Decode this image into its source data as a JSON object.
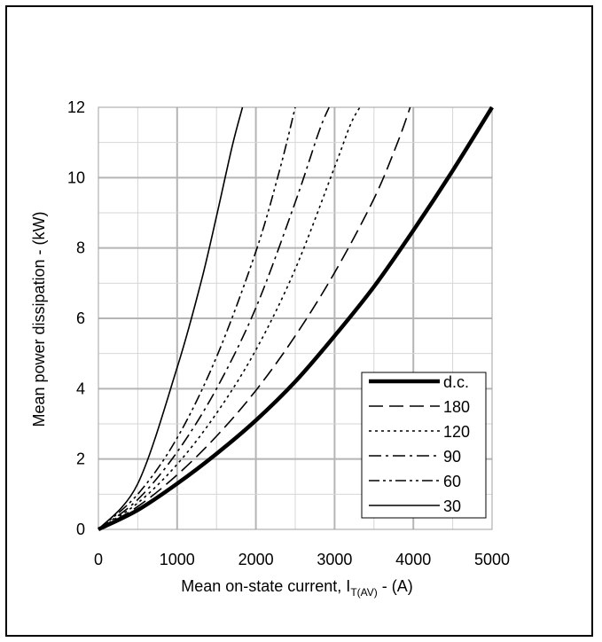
{
  "chart_data": {
    "type": "line",
    "title": "",
    "xlabel_main": "Mean on-state current, I",
    "xlabel_sub": "T(AV)",
    "xlabel_unit": " - (A)",
    "ylabel": "Mean power dissipation - (kW)",
    "xlim": [
      0,
      5000
    ],
    "ylim": [
      0,
      12
    ],
    "x_ticks": [
      "0",
      "1000",
      "2000",
      "3000",
      "4000",
      "5000"
    ],
    "y_ticks": [
      "0",
      "2",
      "4",
      "6",
      "8",
      "10",
      "12"
    ],
    "grid": true,
    "legend_position": "bottom-right",
    "series": [
      {
        "name": "d.c.",
        "style": "thick-solid",
        "points": [
          [
            0,
            0
          ],
          [
            500,
            0.55
          ],
          [
            1000,
            1.3
          ],
          [
            1500,
            2.15
          ],
          [
            2000,
            3.1
          ],
          [
            2500,
            4.2
          ],
          [
            3000,
            5.5
          ],
          [
            3500,
            6.9
          ],
          [
            4000,
            8.5
          ],
          [
            4500,
            10.2
          ],
          [
            5000,
            12
          ]
        ]
      },
      {
        "name": "180",
        "style": "long-dash",
        "points": [
          [
            0,
            0
          ],
          [
            500,
            0.65
          ],
          [
            1000,
            1.55
          ],
          [
            1500,
            2.65
          ],
          [
            2000,
            3.95
          ],
          [
            2500,
            5.5
          ],
          [
            3000,
            7.3
          ],
          [
            3500,
            9.4
          ],
          [
            3800,
            11
          ],
          [
            3960,
            12
          ]
        ]
      },
      {
        "name": "120",
        "style": "dotted",
        "points": [
          [
            0,
            0
          ],
          [
            500,
            0.75
          ],
          [
            1000,
            1.85
          ],
          [
            1500,
            3.3
          ],
          [
            2000,
            5.1
          ],
          [
            2500,
            7.4
          ],
          [
            3000,
            10.3
          ],
          [
            3200,
            11.5
          ],
          [
            3320,
            12
          ]
        ]
      },
      {
        "name": "90",
        "style": "dash-dot",
        "points": [
          [
            0,
            0
          ],
          [
            500,
            0.85
          ],
          [
            1000,
            2.2
          ],
          [
            1500,
            4.0
          ],
          [
            2000,
            6.3
          ],
          [
            2500,
            9.3
          ],
          [
            2800,
            11.3
          ],
          [
            2930,
            12
          ]
        ]
      },
      {
        "name": "60",
        "style": "dash-dot-dot",
        "points": [
          [
            0,
            0
          ],
          [
            500,
            1.0
          ],
          [
            1000,
            2.6
          ],
          [
            1500,
            4.9
          ],
          [
            2000,
            7.9
          ],
          [
            2300,
            10.2
          ],
          [
            2500,
            12
          ]
        ]
      },
      {
        "name": "30",
        "style": "solid",
        "points": [
          [
            0,
            0
          ],
          [
            500,
            1.3
          ],
          [
            1000,
            4.6
          ],
          [
            1300,
            7.0
          ],
          [
            1500,
            8.9
          ],
          [
            1700,
            10.9
          ],
          [
            1830,
            12
          ]
        ]
      }
    ]
  }
}
